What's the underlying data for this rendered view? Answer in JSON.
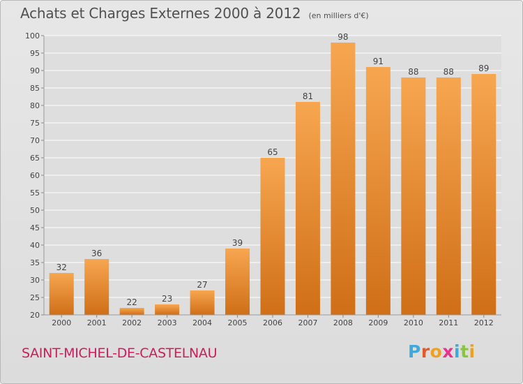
{
  "header": {
    "title": "Achats et Charges Externes 2000 à 2012",
    "unit": "(en milliers d'€)"
  },
  "footer": {
    "place": "SAINT-MICHEL-DE-CASTELNAU",
    "logo": "Proxiti",
    "logo_colors": [
      "#3fa9d9",
      "#e05a2b",
      "#f0a020",
      "#e8328c",
      "#3fa9d9",
      "#8bc53f",
      "#f0a020"
    ]
  },
  "colors": {
    "bar_light": "#f7a650",
    "bar_dark": "#cf6f17",
    "grid": "#ffffff",
    "axis_text": "#444444",
    "label_text": "#444444"
  },
  "chart_data": {
    "type": "bar",
    "categories": [
      "2000",
      "2001",
      "2002",
      "2003",
      "2004",
      "2005",
      "2006",
      "2007",
      "2008",
      "2009",
      "2010",
      "2011",
      "2012"
    ],
    "values": [
      32,
      36,
      22,
      23,
      27,
      39,
      65,
      81,
      98,
      91,
      88,
      88,
      89
    ],
    "title": "Achats et Charges Externes 2000 à 2012",
    "subtitle": "(en milliers d'€)",
    "xlabel": "",
    "ylabel": "",
    "ylim": [
      20,
      100
    ],
    "yticks": [
      20,
      25,
      30,
      35,
      40,
      45,
      50,
      55,
      60,
      65,
      70,
      75,
      80,
      85,
      90,
      95,
      100
    ],
    "grid": true,
    "legend": "none"
  }
}
